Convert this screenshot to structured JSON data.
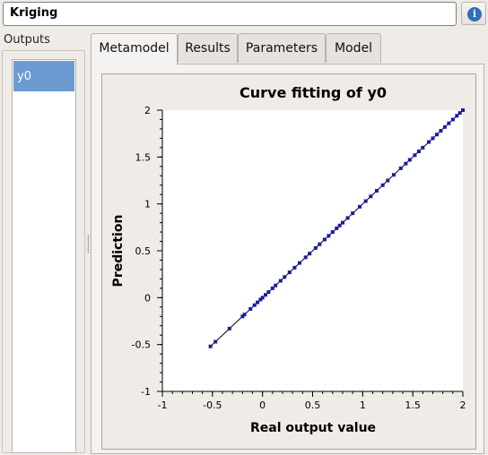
{
  "header": {
    "title": "Kriging",
    "info_icon": "info-icon"
  },
  "sidebar": {
    "label": "Outputs",
    "items": [
      {
        "label": "y0",
        "selected": true
      }
    ]
  },
  "tabs": [
    {
      "label": "Metamodel",
      "active": true
    },
    {
      "label": "Results",
      "active": false
    },
    {
      "label": "Parameters",
      "active": false
    },
    {
      "label": "Model",
      "active": false
    }
  ],
  "colors": {
    "selection": "#6b9bd1",
    "points": "#1a1a9e",
    "line": "#000000"
  },
  "chart_data": {
    "type": "scatter",
    "title": "Curve fitting of y0",
    "xlabel": "Real output value",
    "ylabel": "Prediction",
    "xlim": [
      -1,
      2
    ],
    "ylim": [
      -1,
      2
    ],
    "xticks": [
      "-1",
      "-0.5",
      "0",
      "0.5",
      "1",
      "1.5",
      "2"
    ],
    "yticks": [
      "-1",
      "-0.5",
      "0",
      "0.5",
      "1",
      "1.5",
      "2"
    ],
    "grid": false,
    "diagonal_line": [
      [
        -0.52,
        -0.52
      ],
      [
        2,
        2
      ]
    ],
    "series": [
      {
        "values": [
          [
            -0.52,
            -0.52
          ],
          [
            -0.47,
            -0.47
          ],
          [
            -0.33,
            -0.33
          ],
          [
            -0.2,
            -0.2
          ],
          [
            -0.18,
            -0.18
          ],
          [
            -0.12,
            -0.12
          ],
          [
            -0.08,
            -0.08
          ],
          [
            -0.05,
            -0.05
          ],
          [
            -0.02,
            -0.02
          ],
          [
            0.0,
            0.0
          ],
          [
            0.03,
            0.03
          ],
          [
            0.06,
            0.06
          ],
          [
            0.1,
            0.1
          ],
          [
            0.13,
            0.13
          ],
          [
            0.18,
            0.18
          ],
          [
            0.22,
            0.22
          ],
          [
            0.27,
            0.27
          ],
          [
            0.32,
            0.32
          ],
          [
            0.37,
            0.37
          ],
          [
            0.43,
            0.43
          ],
          [
            0.47,
            0.47
          ],
          [
            0.53,
            0.53
          ],
          [
            0.57,
            0.57
          ],
          [
            0.62,
            0.62
          ],
          [
            0.66,
            0.66
          ],
          [
            0.7,
            0.7
          ],
          [
            0.74,
            0.74
          ],
          [
            0.77,
            0.77
          ],
          [
            0.8,
            0.8
          ],
          [
            0.85,
            0.85
          ],
          [
            0.9,
            0.9
          ],
          [
            0.97,
            0.97
          ],
          [
            1.03,
            1.03
          ],
          [
            1.08,
            1.08
          ],
          [
            1.14,
            1.14
          ],
          [
            1.2,
            1.2
          ],
          [
            1.25,
            1.25
          ],
          [
            1.31,
            1.31
          ],
          [
            1.38,
            1.38
          ],
          [
            1.43,
            1.43
          ],
          [
            1.47,
            1.47
          ],
          [
            1.52,
            1.52
          ],
          [
            1.56,
            1.56
          ],
          [
            1.6,
            1.6
          ],
          [
            1.66,
            1.66
          ],
          [
            1.7,
            1.7
          ],
          [
            1.74,
            1.74
          ],
          [
            1.78,
            1.78
          ],
          [
            1.82,
            1.82
          ],
          [
            1.86,
            1.86
          ],
          [
            1.9,
            1.9
          ],
          [
            1.94,
            1.94
          ],
          [
            1.97,
            1.97
          ],
          [
            2.0,
            2.0
          ]
        ]
      }
    ]
  }
}
